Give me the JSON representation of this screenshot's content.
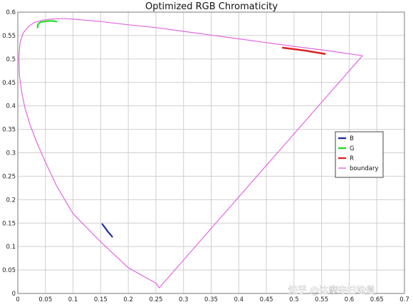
{
  "chart_data": {
    "type": "line",
    "title": "Optimized RGB Chromaticity",
    "xlabel": "",
    "ylabel": "",
    "xlim": [
      0,
      0.7
    ],
    "ylim": [
      0,
      0.6
    ],
    "x_ticks": [
      0,
      0.05,
      0.1,
      0.15,
      0.2,
      0.25,
      0.3,
      0.35,
      0.4,
      0.45,
      0.5,
      0.55,
      0.6,
      0.65,
      0.7
    ],
    "x_tick_labels": [
      "0",
      "0.05",
      "0.1",
      "0.15",
      "0.2",
      "0.25",
      "0.3",
      "0.35",
      "0.4",
      "0.45",
      "0.5",
      "0.55",
      "0.6",
      "0.65",
      "0.7"
    ],
    "y_ticks": [
      0,
      0.05,
      0.1,
      0.15,
      0.2,
      0.25,
      0.3,
      0.35,
      0.4,
      0.45,
      0.5,
      0.55,
      0.6
    ],
    "y_tick_labels": [
      "0",
      "0.05",
      "0.1",
      "0.15",
      "0.2",
      "0.25",
      "0.3",
      "0.35",
      "0.4",
      "0.45",
      "0.5",
      "0.55",
      "0.6"
    ],
    "grid": true,
    "legend_position": "right",
    "series": [
      {
        "name": "B",
        "color": "#1f2f9a",
        "width": 2.2,
        "x": [
          0.153,
          0.158,
          0.163,
          0.168,
          0.171
        ],
        "y": [
          0.148,
          0.14,
          0.132,
          0.125,
          0.121
        ]
      },
      {
        "name": "G",
        "color": "#22dd22",
        "width": 2.2,
        "x": [
          0.036,
          0.036,
          0.038,
          0.042,
          0.048,
          0.056,
          0.064,
          0.07
        ],
        "y": [
          0.567,
          0.572,
          0.576,
          0.579,
          0.58,
          0.581,
          0.581,
          0.58
        ]
      },
      {
        "name": "R",
        "color": "#dd2222",
        "width": 2.6,
        "x": [
          0.48,
          0.5,
          0.52,
          0.54,
          0.556
        ],
        "y": [
          0.524,
          0.521,
          0.518,
          0.514,
          0.511
        ]
      },
      {
        "name": "boundary",
        "color": "#e066e0",
        "width": 1.2,
        "x": [
          0.624,
          0.56,
          0.5,
          0.45,
          0.4,
          0.35,
          0.3,
          0.25,
          0.2,
          0.15,
          0.12,
          0.1,
          0.085,
          0.075,
          0.06,
          0.045,
          0.03,
          0.02,
          0.01,
          0.004,
          0.002,
          0.003,
          0.007,
          0.013,
          0.022,
          0.035,
          0.05,
          0.07,
          0.1,
          0.15,
          0.2,
          0.25,
          0.256,
          0.624
        ],
        "y": [
          0.507,
          0.518,
          0.527,
          0.535,
          0.543,
          0.551,
          0.559,
          0.567,
          0.573,
          0.58,
          0.583,
          0.585,
          0.586,
          0.586,
          0.585,
          0.583,
          0.578,
          0.57,
          0.556,
          0.535,
          0.505,
          0.465,
          0.43,
          0.395,
          0.36,
          0.32,
          0.28,
          0.23,
          0.17,
          0.11,
          0.055,
          0.022,
          0.012,
          0.507
        ]
      }
    ]
  },
  "watermark": "知乎 @达摩寺扫地僧"
}
